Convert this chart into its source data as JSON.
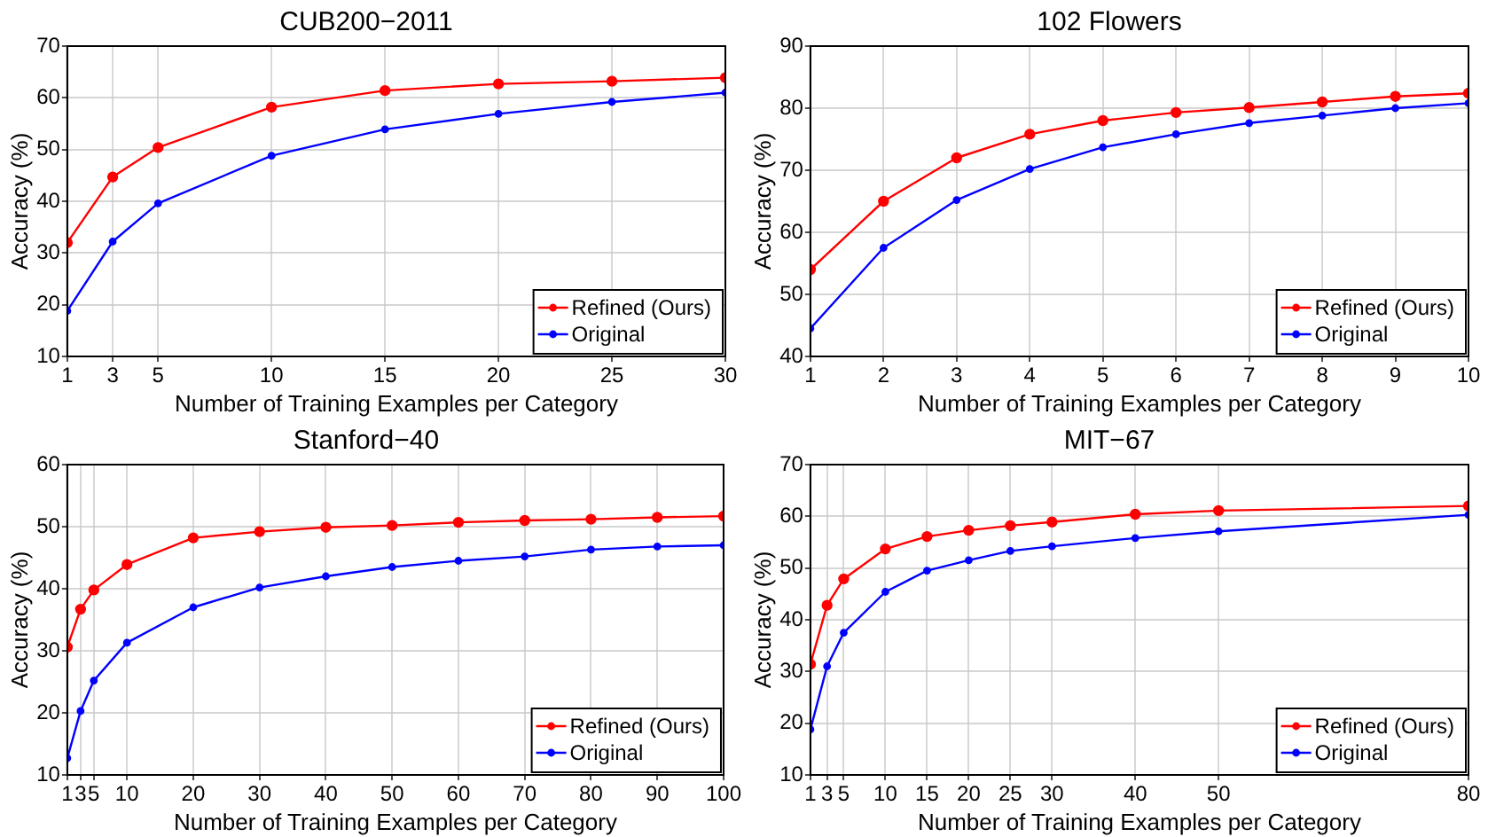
{
  "chart_data": [
    {
      "type": "line",
      "title": "CUB200−2011",
      "xlabel": "Number of Training Examples per Category",
      "ylabel": "Accuracy (%)",
      "x": [
        1,
        3,
        5,
        10,
        15,
        20,
        25,
        30
      ],
      "xlim": [
        1,
        30
      ],
      "xticks": [
        1,
        3,
        5,
        10,
        15,
        20,
        25,
        30
      ],
      "ylim": [
        10,
        70
      ],
      "yticks": [
        10,
        20,
        30,
        40,
        50,
        60,
        70
      ],
      "grid": true,
      "legend": "bottom right",
      "marker": "circle",
      "series": [
        {
          "name": "Refined (Ours)",
          "color": "#ff0000",
          "values": [
            32,
            44.7,
            50.4,
            58.2,
            61.4,
            62.7,
            63.2,
            63.9
          ]
        },
        {
          "name": "Original",
          "color": "#0000ff",
          "values": [
            18.8,
            32.2,
            39.6,
            48.8,
            53.9,
            56.9,
            59.2,
            61
          ]
        }
      ]
    },
    {
      "type": "line",
      "title": "102 Flowers",
      "xlabel": "Number of Training Examples per Category",
      "ylabel": "Accuracy (%)",
      "x": [
        1,
        2,
        3,
        4,
        5,
        6,
        7,
        8,
        9,
        10
      ],
      "xlim": [
        1,
        10
      ],
      "xticks": [
        1,
        2,
        3,
        4,
        5,
        6,
        7,
        8,
        9,
        10
      ],
      "ylim": [
        40,
        90
      ],
      "yticks": [
        40,
        50,
        60,
        70,
        80,
        90
      ],
      "grid": true,
      "legend": "bottom right",
      "marker": "circle",
      "series": [
        {
          "name": "Refined (Ours)",
          "color": "#ff0000",
          "values": [
            54,
            65,
            72,
            75.8,
            78,
            79.3,
            80.1,
            81,
            81.9,
            82.4
          ]
        },
        {
          "name": "Original",
          "color": "#0000ff",
          "values": [
            44.5,
            57.5,
            65.2,
            70.2,
            73.7,
            75.8,
            77.6,
            78.8,
            80,
            80.8
          ]
        }
      ]
    },
    {
      "type": "line",
      "title": "Stanford−40",
      "xlabel": "Number of Training Examples per Category",
      "ylabel": "Accuracy (%)",
      "x": [
        1,
        3,
        5,
        10,
        20,
        30,
        40,
        50,
        60,
        70,
        80,
        90,
        100
      ],
      "xlim": [
        1,
        100
      ],
      "xticks": [
        1,
        3,
        5,
        10,
        20,
        30,
        40,
        50,
        60,
        70,
        80,
        90,
        100
      ],
      "ylim": [
        10,
        60
      ],
      "yticks": [
        10,
        20,
        30,
        40,
        50,
        60
      ],
      "grid": true,
      "legend": "bottom right",
      "marker": "circle",
      "series": [
        {
          "name": "Refined (Ours)",
          "color": "#ff0000",
          "values": [
            30.6,
            36.7,
            39.8,
            43.9,
            48.2,
            49.2,
            49.9,
            50.2,
            50.7,
            51,
            51.2,
            51.5,
            51.7
          ]
        },
        {
          "name": "Original",
          "color": "#0000ff",
          "values": [
            12.7,
            20.3,
            25.2,
            31.3,
            37,
            40.2,
            42,
            43.5,
            44.5,
            45.2,
            46.3,
            46.8,
            47
          ]
        }
      ]
    },
    {
      "type": "line",
      "title": "MIT−67",
      "xlabel": "Number of Training Examples per Category",
      "ylabel": "Accuracy (%)",
      "x": [
        1,
        3,
        5,
        10,
        15,
        20,
        25,
        30,
        40,
        50,
        80
      ],
      "xlim": [
        1,
        80
      ],
      "xticks": [
        1,
        3,
        5,
        10,
        15,
        20,
        25,
        30,
        40,
        50,
        80
      ],
      "ylim": [
        10,
        70
      ],
      "yticks": [
        10,
        20,
        30,
        40,
        50,
        60,
        70
      ],
      "grid": true,
      "legend": "bottom right",
      "marker": "circle",
      "series": [
        {
          "name": "Refined (Ours)",
          "color": "#ff0000",
          "values": [
            31.4,
            42.8,
            47.9,
            53.7,
            56.1,
            57.3,
            58.2,
            58.9,
            60.4,
            61.1,
            62
          ]
        },
        {
          "name": "Original",
          "color": "#0000ff",
          "values": [
            18.8,
            31,
            37.5,
            45.4,
            49.5,
            51.5,
            53.3,
            54.2,
            55.8,
            57.1,
            60.3
          ]
        }
      ]
    }
  ]
}
